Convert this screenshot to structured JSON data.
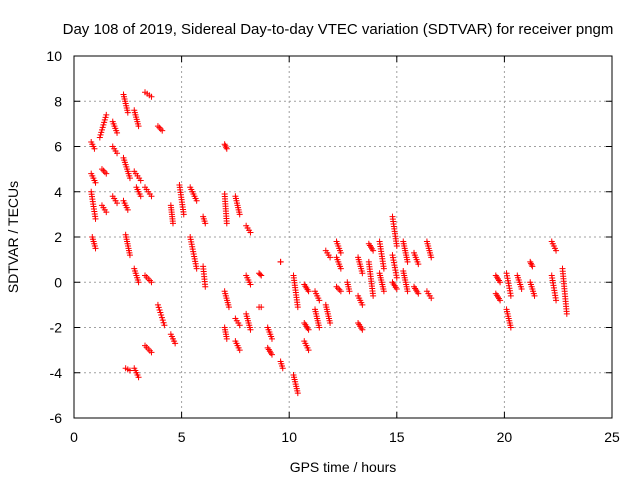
{
  "chart_data": {
    "type": "scatter",
    "title": "Day 108 of 2019, Sidereal Day-to-day VTEC variation (SDTVAR) for receiver pngm",
    "xlabel": "GPS time / hours",
    "ylabel": "SDTVAR / TECUs",
    "xlim": [
      0,
      25
    ],
    "ylim": [
      -6,
      10
    ],
    "xticks": [
      0,
      5,
      10,
      15,
      20,
      25
    ],
    "yticks": [
      -6,
      -4,
      -2,
      0,
      2,
      4,
      6,
      8,
      10
    ],
    "grid": true,
    "marker": "+",
    "marker_color": "#ff0000",
    "tracks": [
      {
        "x0": 0.8,
        "x1": 0.95,
        "y0": 6.2,
        "y1": 5.9
      },
      {
        "x0": 0.8,
        "x1": 1.0,
        "y0": 4.8,
        "y1": 4.4
      },
      {
        "x0": 0.8,
        "x1": 1.0,
        "y0": 4.0,
        "y1": 2.8
      },
      {
        "x0": 0.85,
        "x1": 1.0,
        "y0": 2.0,
        "y1": 1.5
      },
      {
        "x0": 1.2,
        "x1": 1.5,
        "y0": 6.4,
        "y1": 7.4
      },
      {
        "x0": 1.3,
        "x1": 1.5,
        "y0": 5.0,
        "y1": 4.8
      },
      {
        "x0": 1.3,
        "x1": 1.5,
        "y0": 3.4,
        "y1": 3.1
      },
      {
        "x0": 1.8,
        "x1": 2.0,
        "y0": 7.1,
        "y1": 6.6
      },
      {
        "x0": 1.8,
        "x1": 2.0,
        "y0": 6.0,
        "y1": 5.7
      },
      {
        "x0": 1.8,
        "x1": 2.0,
        "y0": 3.8,
        "y1": 3.5
      },
      {
        "x0": 2.3,
        "x1": 2.5,
        "y0": 8.3,
        "y1": 7.5
      },
      {
        "x0": 2.3,
        "x1": 2.6,
        "y0": 5.5,
        "y1": 4.6
      },
      {
        "x0": 2.3,
        "x1": 2.5,
        "y0": 3.6,
        "y1": 3.2
      },
      {
        "x0": 2.4,
        "x1": 2.6,
        "y0": 2.1,
        "y1": 1.2
      },
      {
        "x0": 2.4,
        "x1": 2.6,
        "y0": -3.8,
        "y1": -3.9
      },
      {
        "x0": 2.8,
        "x1": 3.0,
        "y0": 7.6,
        "y1": 6.9
      },
      {
        "x0": 2.8,
        "x1": 3.1,
        "y0": 4.9,
        "y1": 4.5
      },
      {
        "x0": 2.9,
        "x1": 3.1,
        "y0": 4.2,
        "y1": 3.8
      },
      {
        "x0": 2.8,
        "x1": 3.0,
        "y0": 0.6,
        "y1": 0.0
      },
      {
        "x0": 2.8,
        "x1": 3.0,
        "y0": -3.8,
        "y1": -4.2
      },
      {
        "x0": 3.3,
        "x1": 3.6,
        "y0": 8.4,
        "y1": 8.2
      },
      {
        "x0": 3.3,
        "x1": 3.6,
        "y0": 4.2,
        "y1": 3.8
      },
      {
        "x0": 3.3,
        "x1": 3.6,
        "y0": 0.3,
        "y1": 0.0
      },
      {
        "x0": 3.3,
        "x1": 3.6,
        "y0": -2.8,
        "y1": -3.1
      },
      {
        "x0": 3.9,
        "x1": 4.1,
        "y0": 6.9,
        "y1": 6.7
      },
      {
        "x0": 3.9,
        "x1": 4.2,
        "y0": -1.0,
        "y1": -1.9
      },
      {
        "x0": 4.5,
        "x1": 4.6,
        "y0": 3.4,
        "y1": 2.6
      },
      {
        "x0": 4.5,
        "x1": 4.7,
        "y0": -2.3,
        "y1": -2.7
      },
      {
        "x0": 4.9,
        "x1": 5.1,
        "y0": 4.3,
        "y1": 3.0
      },
      {
        "x0": 5.4,
        "x1": 5.7,
        "y0": 4.2,
        "y1": 3.6
      },
      {
        "x0": 5.4,
        "x1": 5.7,
        "y0": 2.0,
        "y1": 0.6
      },
      {
        "x0": 6.0,
        "x1": 6.1,
        "y0": 2.9,
        "y1": 2.6
      },
      {
        "x0": 6.0,
        "x1": 6.1,
        "y0": 0.7,
        "y1": -0.2
      },
      {
        "x0": 7.0,
        "x1": 7.1,
        "y0": 6.1,
        "y1": 5.9
      },
      {
        "x0": 7.0,
        "x1": 7.1,
        "y0": 3.9,
        "y1": 2.6
      },
      {
        "x0": 7.0,
        "x1": 7.2,
        "y0": -0.4,
        "y1": -1.1
      },
      {
        "x0": 7.0,
        "x1": 7.1,
        "y0": -2.0,
        "y1": -2.5
      },
      {
        "x0": 7.5,
        "x1": 7.7,
        "y0": 3.8,
        "y1": 3.0
      },
      {
        "x0": 7.5,
        "x1": 7.7,
        "y0": -1.6,
        "y1": -1.9
      },
      {
        "x0": 7.5,
        "x1": 7.7,
        "y0": -2.6,
        "y1": -3.0
      },
      {
        "x0": 8.0,
        "x1": 8.2,
        "y0": 2.5,
        "y1": 2.2
      },
      {
        "x0": 8.0,
        "x1": 8.2,
        "y0": 0.3,
        "y1": -0.1
      },
      {
        "x0": 8.0,
        "x1": 8.2,
        "y0": -1.4,
        "y1": -2.1
      },
      {
        "x0": 8.6,
        "x1": 8.7,
        "y0": 0.4,
        "y1": 0.3
      },
      {
        "x0": 8.6,
        "x1": 8.7,
        "y0": -1.1,
        "y1": -1.1
      },
      {
        "x0": 9.0,
        "x1": 9.2,
        "y0": -2.0,
        "y1": -2.5
      },
      {
        "x0": 9.0,
        "x1": 9.2,
        "y0": -2.9,
        "y1": -3.2
      },
      {
        "x0": 9.6,
        "x1": 9.6,
        "y0": 0.9,
        "y1": 0.9
      },
      {
        "x0": 9.6,
        "x1": 9.7,
        "y0": -3.5,
        "y1": -3.8
      },
      {
        "x0": 10.2,
        "x1": 10.4,
        "y0": 0.3,
        "y1": -1.1
      },
      {
        "x0": 10.2,
        "x1": 10.4,
        "y0": -4.1,
        "y1": -4.9
      },
      {
        "x0": 10.7,
        "x1": 10.9,
        "y0": -0.1,
        "y1": -0.4
      },
      {
        "x0": 10.7,
        "x1": 10.9,
        "y0": -1.8,
        "y1": -2.1
      },
      {
        "x0": 10.7,
        "x1": 10.9,
        "y0": -2.6,
        "y1": -3.0
      },
      {
        "x0": 11.2,
        "x1": 11.4,
        "y0": -0.4,
        "y1": -0.8
      },
      {
        "x0": 11.2,
        "x1": 11.4,
        "y0": -1.2,
        "y1": -2.0
      },
      {
        "x0": 11.7,
        "x1": 11.9,
        "y0": 1.4,
        "y1": 1.1
      },
      {
        "x0": 11.7,
        "x1": 11.9,
        "y0": -1.0,
        "y1": -1.8
      },
      {
        "x0": 12.2,
        "x1": 12.4,
        "y0": 1.8,
        "y1": 1.3
      },
      {
        "x0": 12.2,
        "x1": 12.4,
        "y0": 1.1,
        "y1": 0.6
      },
      {
        "x0": 12.2,
        "x1": 12.4,
        "y0": -0.2,
        "y1": -0.4
      },
      {
        "x0": 12.7,
        "x1": 12.8,
        "y0": 0.0,
        "y1": -0.4
      },
      {
        "x0": 13.2,
        "x1": 13.4,
        "y0": 1.1,
        "y1": 0.4
      },
      {
        "x0": 13.2,
        "x1": 13.4,
        "y0": -0.6,
        "y1": -1.0
      },
      {
        "x0": 13.2,
        "x1": 13.4,
        "y0": -1.8,
        "y1": -2.1
      },
      {
        "x0": 13.7,
        "x1": 13.9,
        "y0": 1.7,
        "y1": 1.4
      },
      {
        "x0": 13.7,
        "x1": 13.9,
        "y0": 0.9,
        "y1": -0.6
      },
      {
        "x0": 14.2,
        "x1": 14.4,
        "y0": 1.8,
        "y1": 0.6
      },
      {
        "x0": 14.2,
        "x1": 14.4,
        "y0": 0.4,
        "y1": -0.4
      },
      {
        "x0": 14.8,
        "x1": 15.0,
        "y0": 2.9,
        "y1": 1.6
      },
      {
        "x0": 14.8,
        "x1": 15.0,
        "y0": 1.2,
        "y1": 0.2
      },
      {
        "x0": 14.8,
        "x1": 15.0,
        "y0": 0.0,
        "y1": -0.3
      },
      {
        "x0": 15.3,
        "x1": 15.5,
        "y0": 1.8,
        "y1": 0.9
      },
      {
        "x0": 15.3,
        "x1": 15.5,
        "y0": 0.5,
        "y1": -0.4
      },
      {
        "x0": 15.8,
        "x1": 16.0,
        "y0": 1.3,
        "y1": 0.8
      },
      {
        "x0": 15.8,
        "x1": 16.0,
        "y0": -0.2,
        "y1": -0.5
      },
      {
        "x0": 16.4,
        "x1": 16.6,
        "y0": 1.8,
        "y1": 1.1
      },
      {
        "x0": 16.4,
        "x1": 16.6,
        "y0": -0.4,
        "y1": -0.7
      },
      {
        "x0": 19.6,
        "x1": 19.8,
        "y0": 0.3,
        "y1": 0.0
      },
      {
        "x0": 19.6,
        "x1": 19.8,
        "y0": -0.5,
        "y1": -0.8
      },
      {
        "x0": 20.1,
        "x1": 20.3,
        "y0": 0.4,
        "y1": -0.6
      },
      {
        "x0": 20.1,
        "x1": 20.3,
        "y0": -1.2,
        "y1": -2.0
      },
      {
        "x0": 20.6,
        "x1": 20.8,
        "y0": 0.3,
        "y1": -0.3
      },
      {
        "x0": 21.2,
        "x1": 21.3,
        "y0": 0.9,
        "y1": 0.7
      },
      {
        "x0": 21.2,
        "x1": 21.4,
        "y0": 0.0,
        "y1": -0.6
      },
      {
        "x0": 22.2,
        "x1": 22.4,
        "y0": 1.8,
        "y1": 1.4
      },
      {
        "x0": 22.2,
        "x1": 22.4,
        "y0": 0.3,
        "y1": -0.8
      },
      {
        "x0": 22.7,
        "x1": 22.9,
        "y0": 0.6,
        "y1": -1.4
      }
    ]
  }
}
